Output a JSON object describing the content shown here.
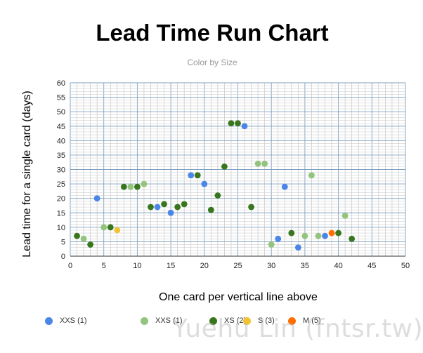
{
  "chart_data": {
    "type": "scatter",
    "title": "Lead Time Run Chart",
    "subtitle": "Color by Size",
    "xlabel": "One card per vertical line above",
    "ylabel": "Lead time for a single card (days)",
    "xlim": [
      0,
      50
    ],
    "ylim": [
      0,
      60
    ],
    "xticks": [
      0,
      5,
      10,
      15,
      20,
      25,
      30,
      35,
      40,
      45,
      50
    ],
    "yticks": [
      0,
      5,
      10,
      15,
      20,
      25,
      30,
      35,
      40,
      45,
      50,
      55,
      60
    ],
    "grid": true,
    "legend_position": "bottom",
    "series": [
      {
        "name": "XXS (1)",
        "color": "#4a86e8",
        "points": [
          [
            4,
            20
          ],
          [
            13,
            17
          ],
          [
            15,
            15
          ],
          [
            18,
            28
          ],
          [
            20,
            25
          ],
          [
            26,
            45
          ],
          [
            31,
            6
          ],
          [
            32,
            24
          ],
          [
            34,
            3
          ],
          [
            38,
            7
          ]
        ]
      },
      {
        "name": "XXS (1)",
        "color": "#93c47d",
        "points": [
          [
            2,
            6
          ],
          [
            5,
            10
          ],
          [
            9,
            24
          ],
          [
            11,
            25
          ],
          [
            28,
            32
          ],
          [
            29,
            32
          ],
          [
            30,
            4
          ],
          [
            35,
            7
          ],
          [
            36,
            28
          ],
          [
            37,
            7
          ],
          [
            41,
            14
          ]
        ]
      },
      {
        "name": "XS (2)",
        "color": "#38761d",
        "points": [
          [
            1,
            7
          ],
          [
            3,
            4
          ],
          [
            6,
            10
          ],
          [
            8,
            24
          ],
          [
            10,
            24
          ],
          [
            12,
            17
          ],
          [
            14,
            18
          ],
          [
            16,
            17
          ],
          [
            17,
            18
          ],
          [
            19,
            28
          ],
          [
            21,
            16
          ],
          [
            22,
            21
          ],
          [
            23,
            31
          ],
          [
            24,
            46
          ],
          [
            25,
            46
          ],
          [
            27,
            17
          ],
          [
            33,
            8
          ],
          [
            40,
            8
          ],
          [
            42,
            6
          ]
        ]
      },
      {
        "name": "S (3)",
        "color": "#f1c232",
        "points": [
          [
            7,
            9
          ]
        ]
      },
      {
        "name": "M (5)",
        "color": "#ff6d01",
        "points": [
          [
            39,
            8
          ]
        ]
      }
    ]
  },
  "watermark": "Yuehu Lin (fntsr.tw)"
}
